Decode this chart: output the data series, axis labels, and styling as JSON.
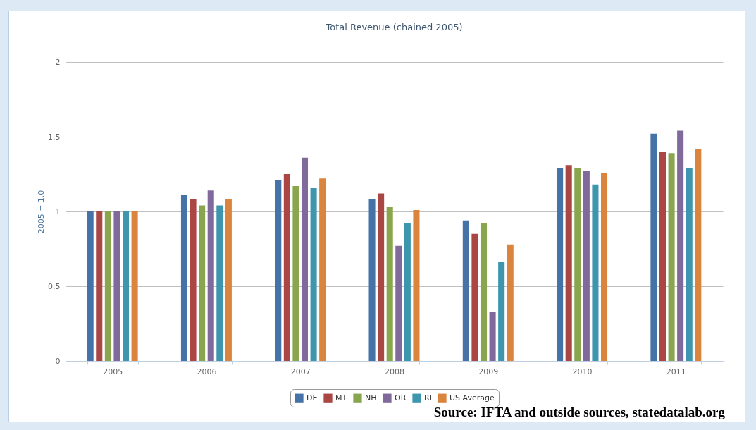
{
  "chart_data": {
    "type": "bar",
    "title": "Total Revenue (chained 2005)",
    "ylabel": "2005 = 1.0",
    "categories": [
      "2005",
      "2006",
      "2007",
      "2008",
      "2009",
      "2010",
      "2011"
    ],
    "series": [
      {
        "name": "DE",
        "color": "#4572a7",
        "values": [
          1.0,
          1.11,
          1.21,
          1.08,
          0.94,
          1.29,
          1.52
        ]
      },
      {
        "name": "MT",
        "color": "#aa4643",
        "values": [
          1.0,
          1.08,
          1.25,
          1.12,
          0.85,
          1.31,
          1.4
        ]
      },
      {
        "name": "NH",
        "color": "#89a54e",
        "values": [
          1.0,
          1.04,
          1.17,
          1.03,
          0.92,
          1.29,
          1.39
        ]
      },
      {
        "name": "OR",
        "color": "#80699b",
        "values": [
          1.0,
          1.14,
          1.36,
          0.77,
          0.33,
          1.27,
          1.54
        ]
      },
      {
        "name": "RI",
        "color": "#3d96ae",
        "values": [
          1.0,
          1.04,
          1.16,
          0.92,
          0.66,
          1.18,
          1.29
        ]
      },
      {
        "name": "US Average",
        "color": "#db843d",
        "values": [
          1.0,
          1.08,
          1.22,
          1.01,
          0.78,
          1.26,
          1.42
        ]
      }
    ],
    "ylim": [
      0,
      2
    ],
    "yticks": [
      0,
      0.5,
      1,
      1.5,
      2
    ],
    "grid": "y",
    "legend": "bottom",
    "annotations": [
      "Source: IFTA and outside sources, statedatalab.org"
    ]
  }
}
